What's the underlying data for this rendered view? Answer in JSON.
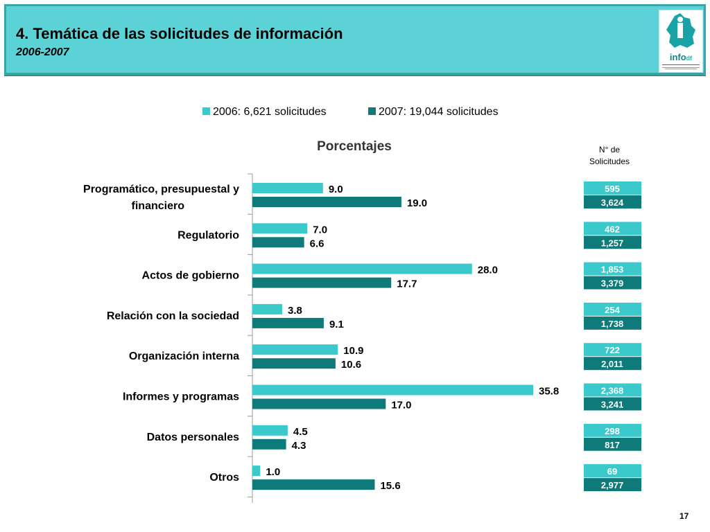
{
  "header": {
    "title": "4. Temática de las solicitudes de información",
    "subtitle": "2006-2007"
  },
  "logo": {
    "text_main": "info",
    "text_sub": "df"
  },
  "page_number": "17",
  "count_header": [
    "N° de",
    "Solicitudes"
  ],
  "colors": {
    "s2006": "#3cc9cc",
    "s2007": "#0e7b7a",
    "header_bg": "#5bd3d6"
  },
  "chart_data": {
    "type": "bar",
    "orientation": "horizontal",
    "title": "Porcentajes",
    "grid": false,
    "legend_position": "top",
    "categories": [
      "Programático, presupuestal y financiero",
      "Regulatorio",
      "Actos de gobierno",
      "Relación con la sociedad",
      "Organización interna",
      "Informes y programas",
      "Datos personales",
      "Otros"
    ],
    "series": [
      {
        "name": "2006: 6,621 solicitudes",
        "values": [
          9.0,
          7.0,
          28.0,
          3.8,
          10.9,
          35.8,
          4.5,
          1.0
        ],
        "labels": [
          "9.0",
          "7.0",
          "28.0",
          "3.8",
          "10.9",
          "35.8",
          "4.5",
          "1.0"
        ],
        "counts": [
          "595",
          "462",
          "1,853",
          "254",
          "722",
          "2,368",
          "298",
          "69"
        ]
      },
      {
        "name": "2007: 19,044 solicitudes",
        "values": [
          19.0,
          6.6,
          17.7,
          9.1,
          10.6,
          17.0,
          4.3,
          15.6
        ],
        "labels": [
          "19.0",
          "6.6",
          "17.7",
          "9.1",
          "10.6",
          "17.0",
          "4.3",
          "15.6"
        ],
        "counts": [
          "3,624",
          "1,257",
          "3,379",
          "1,738",
          "2,011",
          "3,241",
          "817",
          "2,977"
        ]
      }
    ],
    "xlim": [
      0,
      40
    ]
  }
}
